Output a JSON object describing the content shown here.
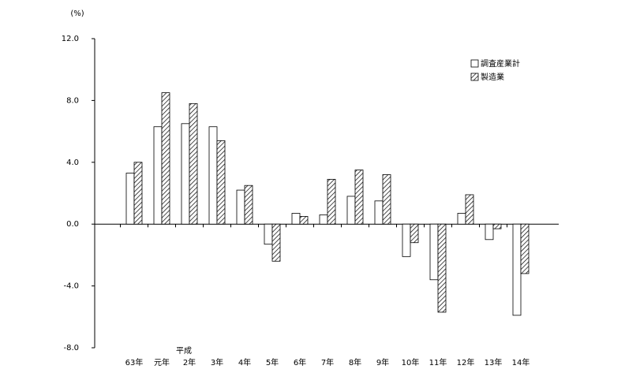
{
  "chart_data": {
    "type": "bar",
    "unit_label": "(%)",
    "era_label": "平成",
    "categories": [
      "63年",
      "元年",
      "2年",
      "3年",
      "4年",
      "5年",
      "6年",
      "7年",
      "8年",
      "9年",
      "10年",
      "11年",
      "12年",
      "13年",
      "14年"
    ],
    "series": [
      {
        "name": "調査産業計",
        "color": "#ffffff",
        "pattern": "none",
        "values": [
          3.3,
          6.3,
          6.5,
          6.3,
          2.2,
          -1.3,
          0.7,
          0.6,
          1.8,
          1.5,
          -2.1,
          -3.6,
          0.7,
          -1.0,
          -5.9
        ]
      },
      {
        "name": "製造業",
        "color": "#ffffff",
        "pattern": "diagonal",
        "values": [
          4.0,
          8.5,
          7.8,
          5.4,
          2.5,
          -2.4,
          0.5,
          2.9,
          3.5,
          3.2,
          -1.2,
          -5.7,
          1.9,
          -0.3,
          -3.2
        ]
      }
    ],
    "ylim": [
      -8,
      12
    ],
    "yticks": [
      {
        "value": -8,
        "label": "-8.0"
      },
      {
        "value": -4,
        "label": "-4.0"
      },
      {
        "value": 0,
        "label": "0.0"
      },
      {
        "value": 4,
        "label": "4.0"
      },
      {
        "value": 8,
        "label": "8.0"
      },
      {
        "value": 12,
        "label": "12.0"
      }
    ],
    "legend": "top-right"
  }
}
